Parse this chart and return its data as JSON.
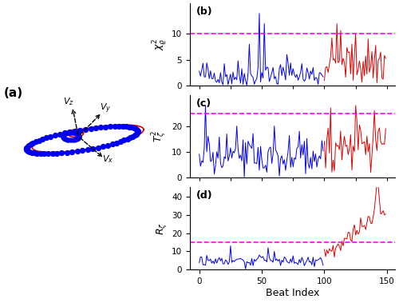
{
  "n_beats": 150,
  "split": 100,
  "panel_b_threshold": 10.0,
  "panel_c_threshold": 25.0,
  "panel_d_threshold": 15.0,
  "panel_b_ylim": [
    0,
    16
  ],
  "panel_c_ylim": [
    0,
    32
  ],
  "panel_d_ylim": [
    0,
    45
  ],
  "panel_b_yticks": [
    0,
    5,
    10
  ],
  "panel_c_yticks": [
    0,
    10,
    20
  ],
  "panel_d_yticks": [
    0,
    10,
    20,
    30,
    40
  ],
  "xticks": [
    0,
    50,
    100,
    150
  ],
  "blue_color": "#0000ee",
  "red_color": "#dd0000",
  "magenta_color": "#ff00ff",
  "vcg_dot_color": "#0000ee",
  "vcg_line_color": "#dd0000",
  "xlabel": "Beat Index",
  "panel_labels": [
    "(b)",
    "(c)",
    "(d)"
  ],
  "vcg_label": "(a)",
  "seed": 42
}
